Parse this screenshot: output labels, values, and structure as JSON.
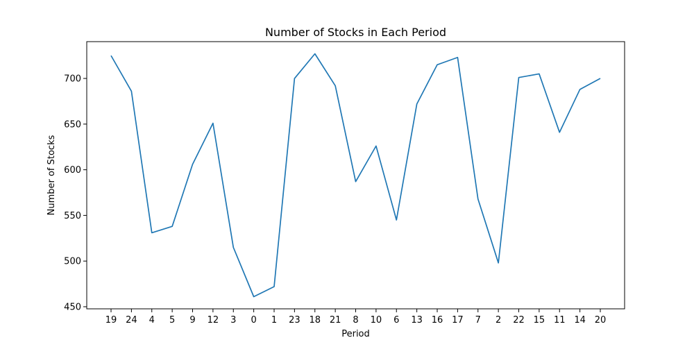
{
  "chart_data": {
    "type": "line",
    "title": "Number of Stocks in Each Period",
    "xlabel": "Period",
    "ylabel": "Number of Stocks",
    "categories": [
      "19",
      "24",
      "4",
      "5",
      "9",
      "12",
      "3",
      "0",
      "1",
      "23",
      "18",
      "21",
      "8",
      "10",
      "6",
      "13",
      "16",
      "17",
      "7",
      "2",
      "22",
      "15",
      "11",
      "14",
      "20"
    ],
    "series": [
      {
        "values": [
          725,
          686,
          531,
          538,
          606,
          651,
          515,
          461,
          472,
          700,
          727,
          692,
          587,
          626,
          545,
          672,
          715,
          723,
          568,
          498,
          701,
          705,
          641,
          688,
          700
        ],
        "color": "#1f77b4"
      }
    ],
    "ylim": [
      447.7,
      740.3
    ],
    "yticks": [
      450,
      500,
      550,
      600,
      650,
      700
    ],
    "ytick_labels": [
      "450",
      "500",
      "550",
      "600",
      "650",
      "700"
    ],
    "grid": false
  }
}
